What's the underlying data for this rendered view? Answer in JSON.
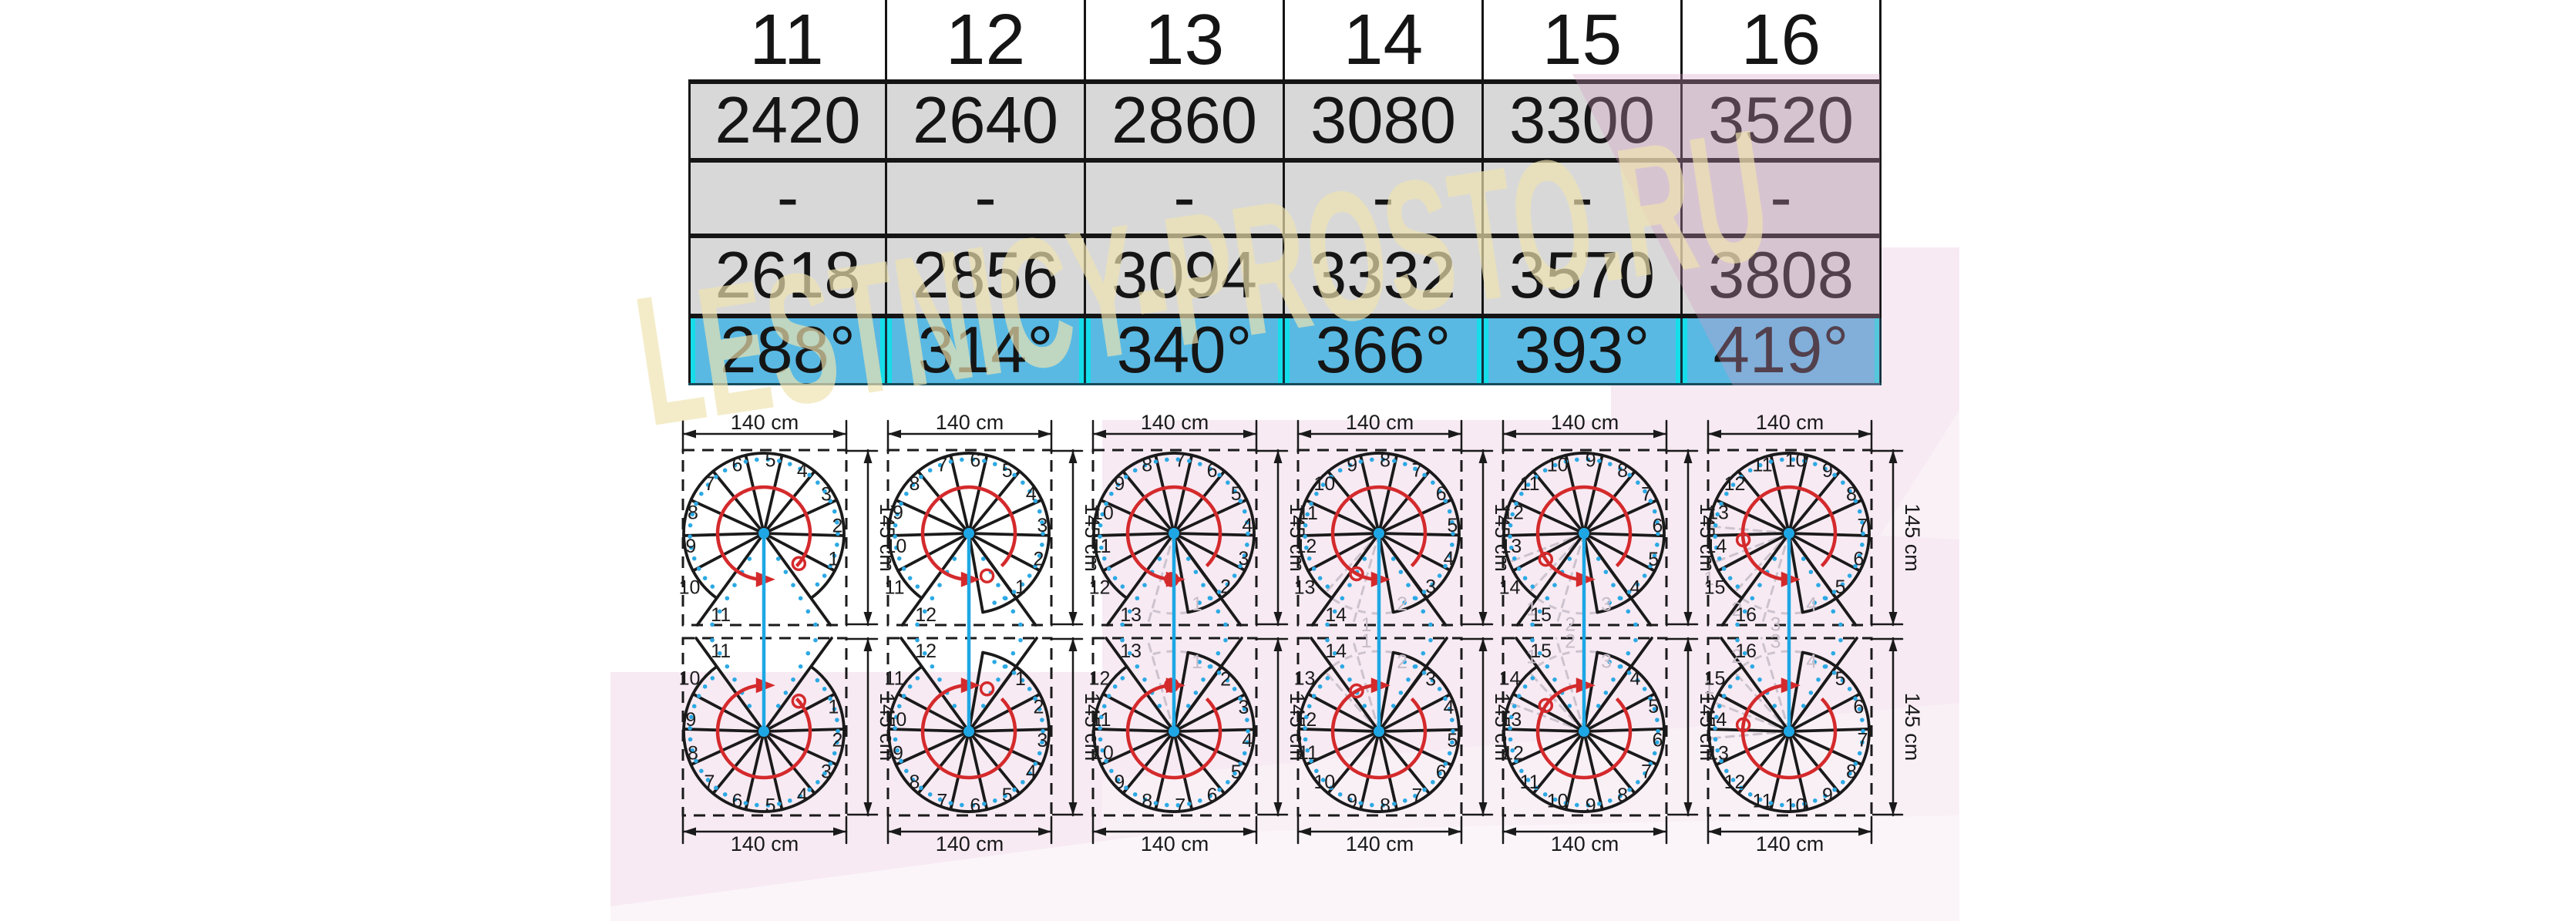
{
  "watermark": {
    "text": "LESTNICY-PROSTO.RU"
  },
  "table": {
    "header": [
      "11",
      "12",
      "13",
      "14",
      "15",
      "16"
    ],
    "rows": [
      {
        "name": "height-min-row",
        "style": "gray",
        "cells": [
          "2420",
          "2640",
          "2860",
          "3080",
          "3300",
          "3520"
        ]
      },
      {
        "name": "dash-row",
        "style": "gray",
        "cells": [
          "-",
          "-",
          "-",
          "-",
          "-",
          "-"
        ]
      },
      {
        "name": "height-max-row",
        "style": "gray",
        "cells": [
          "2618",
          "2856",
          "3094",
          "3332",
          "3570",
          "3808"
        ]
      },
      {
        "name": "rotation-row",
        "style": "blue",
        "cells": [
          "288°",
          "314°",
          "340°",
          "366°",
          "393°",
          "419°"
        ]
      }
    ]
  },
  "diagrams": {
    "dim_width_label": "140 cm",
    "dim_height_label": "145 cm",
    "variants": [
      "top-right-turn",
      "bottom-left-turn"
    ],
    "columns": [
      {
        "steps": 11,
        "rotation_deg": 288
      },
      {
        "steps": 12,
        "rotation_deg": 314
      },
      {
        "steps": 13,
        "rotation_deg": 340
      },
      {
        "steps": 14,
        "rotation_deg": 366
      },
      {
        "steps": 15,
        "rotation_deg": 393
      },
      {
        "steps": 16,
        "rotation_deg": 419
      }
    ]
  },
  "colors": {
    "gray_cell": "#d8d8d8",
    "blue_cell": "#59b9e3",
    "cyan_edge": "#16dde9",
    "line_black": "#1a1a1a",
    "red_arrow": "#d42a2c",
    "pole_blue": "#1ea7e4",
    "dot_blue": "#2ba9e4",
    "faint_step": "#ccc3ce",
    "pink_bg": "#f7eaf3",
    "watermark_cream": "#f0e4b0"
  }
}
